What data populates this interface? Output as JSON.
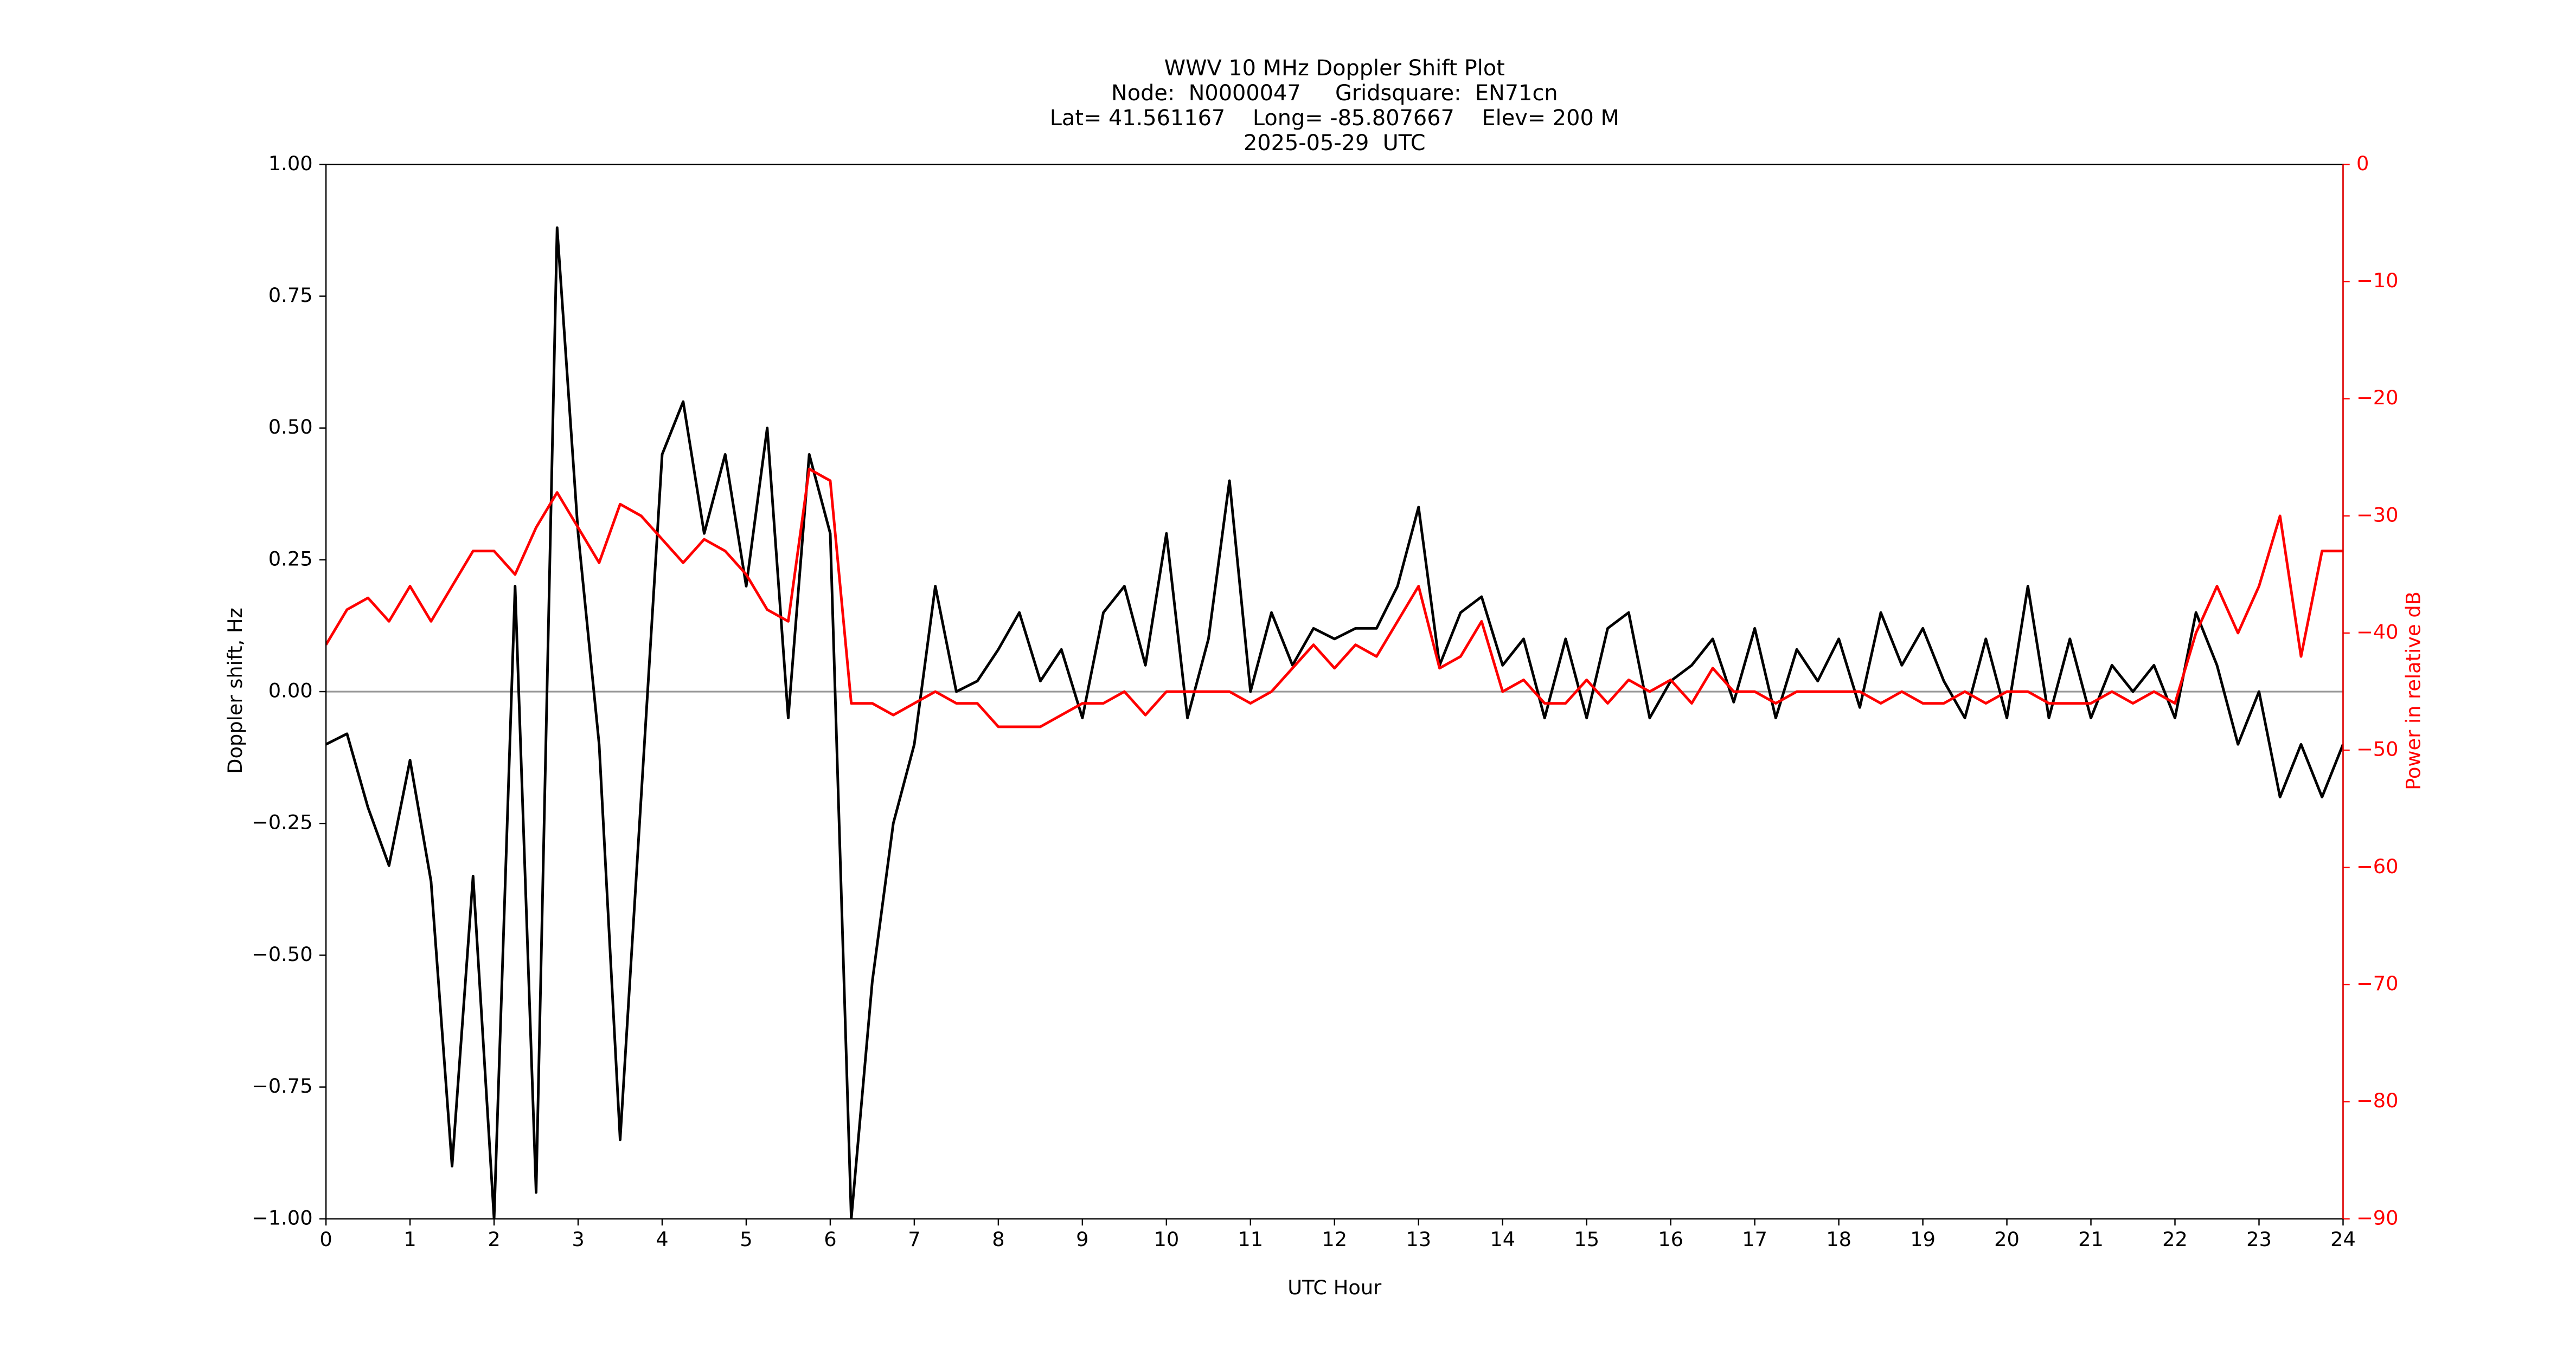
{
  "chart_data": {
    "type": "line",
    "title": [
      "WWV 10 MHz Doppler Shift Plot",
      "Node:  N0000047     Gridsquare:  EN71cn",
      "Lat= 41.561167    Long= -85.807667    Elev= 200 M",
      "2025-05-29  UTC"
    ],
    "x_label": "UTC Hour",
    "y_label": "Doppler shift, Hz",
    "y2_label": "Power in relative dB",
    "x": [
      0,
      0.25,
      0.5,
      0.75,
      1,
      1.25,
      1.5,
      1.75,
      2,
      2.25,
      2.5,
      2.75,
      3,
      3.25,
      3.5,
      3.75,
      4,
      4.25,
      4.5,
      4.75,
      5,
      5.25,
      5.5,
      5.75,
      6,
      6.25,
      6.5,
      6.75,
      7,
      7.25,
      7.5,
      7.75,
      8,
      8.25,
      8.5,
      8.75,
      9,
      9.25,
      9.5,
      9.75,
      10,
      10.25,
      10.5,
      10.75,
      11,
      11.25,
      11.5,
      11.75,
      12,
      12.25,
      12.5,
      12.75,
      13,
      13.25,
      13.5,
      13.75,
      14,
      14.25,
      14.5,
      14.75,
      15,
      15.25,
      15.5,
      15.75,
      16,
      16.25,
      16.5,
      16.75,
      17,
      17.25,
      17.5,
      17.75,
      18,
      18.25,
      18.5,
      18.75,
      19,
      19.25,
      19.5,
      19.75,
      20,
      20.25,
      20.5,
      20.75,
      21,
      21.25,
      21.5,
      21.75,
      22,
      22.25,
      22.5,
      22.75,
      23,
      23.25,
      23.5,
      23.75,
      24
    ],
    "series": [
      {
        "color": "#000000",
        "values": [
          -0.1,
          -0.08,
          -0.22,
          -0.33,
          -0.13,
          -0.36,
          -0.9,
          -0.35,
          -1.0,
          0.2,
          -0.95,
          0.88,
          0.3,
          -0.1,
          -0.85,
          -0.2,
          0.45,
          0.55,
          0.3,
          0.45,
          0.2,
          0.5,
          -0.05,
          0.45,
          0.3,
          -1.0,
          -0.55,
          -0.25,
          -0.1,
          0.2,
          0.0,
          0.02,
          0.08,
          0.15,
          0.02,
          0.08,
          -0.05,
          0.15,
          0.2,
          0.05,
          0.3,
          -0.05,
          0.1,
          0.4,
          0.0,
          0.15,
          0.05,
          0.12,
          0.1,
          0.12,
          0.12,
          0.2,
          0.35,
          0.05,
          0.15,
          0.18,
          0.05,
          0.1,
          -0.05,
          0.1,
          -0.05,
          0.12,
          0.15,
          -0.05,
          0.02,
          0.05,
          0.1,
          -0.02,
          0.12,
          -0.05,
          0.08,
          0.02,
          0.1,
          -0.03,
          0.15,
          0.05,
          0.12,
          0.02,
          -0.05,
          0.1,
          -0.05,
          0.2,
          -0.05,
          0.1,
          -0.05,
          0.05,
          0.0,
          0.05,
          -0.05,
          0.15,
          0.05,
          -0.1,
          0.0,
          -0.2,
          -0.1,
          -0.2,
          -0.1
        ]
      },
      {
        "color": "#ff0000",
        "axis": "y2",
        "values": [
          -41,
          -38,
          -37,
          -39,
          -36,
          -39,
          -36,
          -33,
          -33,
          -35,
          -31,
          -28,
          -31,
          -34,
          -29,
          -30,
          -32,
          -34,
          -32,
          -33,
          -35,
          -38,
          -39,
          -26,
          -27,
          -46,
          -46,
          -47,
          -46,
          -45,
          -46,
          -46,
          -48,
          -48,
          -48,
          -47,
          -46,
          -46,
          -45,
          -47,
          -45,
          -45,
          -45,
          -45,
          -46,
          -45,
          -43,
          -41,
          -43,
          -41,
          -42,
          -39,
          -36,
          -43,
          -42,
          -39,
          -45,
          -44,
          -46,
          -46,
          -44,
          -46,
          -44,
          -45,
          -44,
          -46,
          -43,
          -45,
          -45,
          -46,
          -45,
          -45,
          -45,
          -45,
          -46,
          -45,
          -46,
          -46,
          -45,
          -46,
          -45,
          -45,
          -46,
          -46,
          -46,
          -45,
          -46,
          -45,
          -46,
          -40,
          -36,
          -40,
          -36,
          -30,
          -42,
          -33,
          -33
        ]
      }
    ],
    "xlim": [
      0,
      24
    ],
    "xticks": [
      0,
      1,
      2,
      3,
      4,
      5,
      6,
      7,
      8,
      9,
      10,
      11,
      12,
      13,
      14,
      15,
      16,
      17,
      18,
      19,
      20,
      21,
      22,
      23,
      24
    ],
    "ylim": [
      -1,
      1
    ],
    "yticks": [
      {
        "value": -1,
        "label": "−1.00"
      },
      {
        "value": -0.75,
        "label": "−0.75"
      },
      {
        "value": -0.5,
        "label": "−0.50"
      },
      {
        "value": -0.25,
        "label": "−0.25"
      },
      {
        "value": 0,
        "label": "0.00"
      },
      {
        "value": 0.25,
        "label": "0.25"
      },
      {
        "value": 0.5,
        "label": "0.50"
      },
      {
        "value": 0.75,
        "label": "0.75"
      },
      {
        "value": 1,
        "label": "1.00"
      }
    ],
    "y2lim": [
      -90,
      0
    ],
    "y2ticks": [
      {
        "value": -90,
        "label": "−90"
      },
      {
        "value": -80,
        "label": "−80"
      },
      {
        "value": -70,
        "label": "−70"
      },
      {
        "value": -60,
        "label": "−60"
      },
      {
        "value": -50,
        "label": "−50"
      },
      {
        "value": -40,
        "label": "−40"
      },
      {
        "value": -30,
        "label": "−30"
      },
      {
        "value": -20,
        "label": "−20"
      },
      {
        "value": -10,
        "label": "−10"
      },
      0
    ],
    "y2_color": "#ff0000",
    "axhline": {
      "y": 0,
      "color": "#999999"
    }
  }
}
